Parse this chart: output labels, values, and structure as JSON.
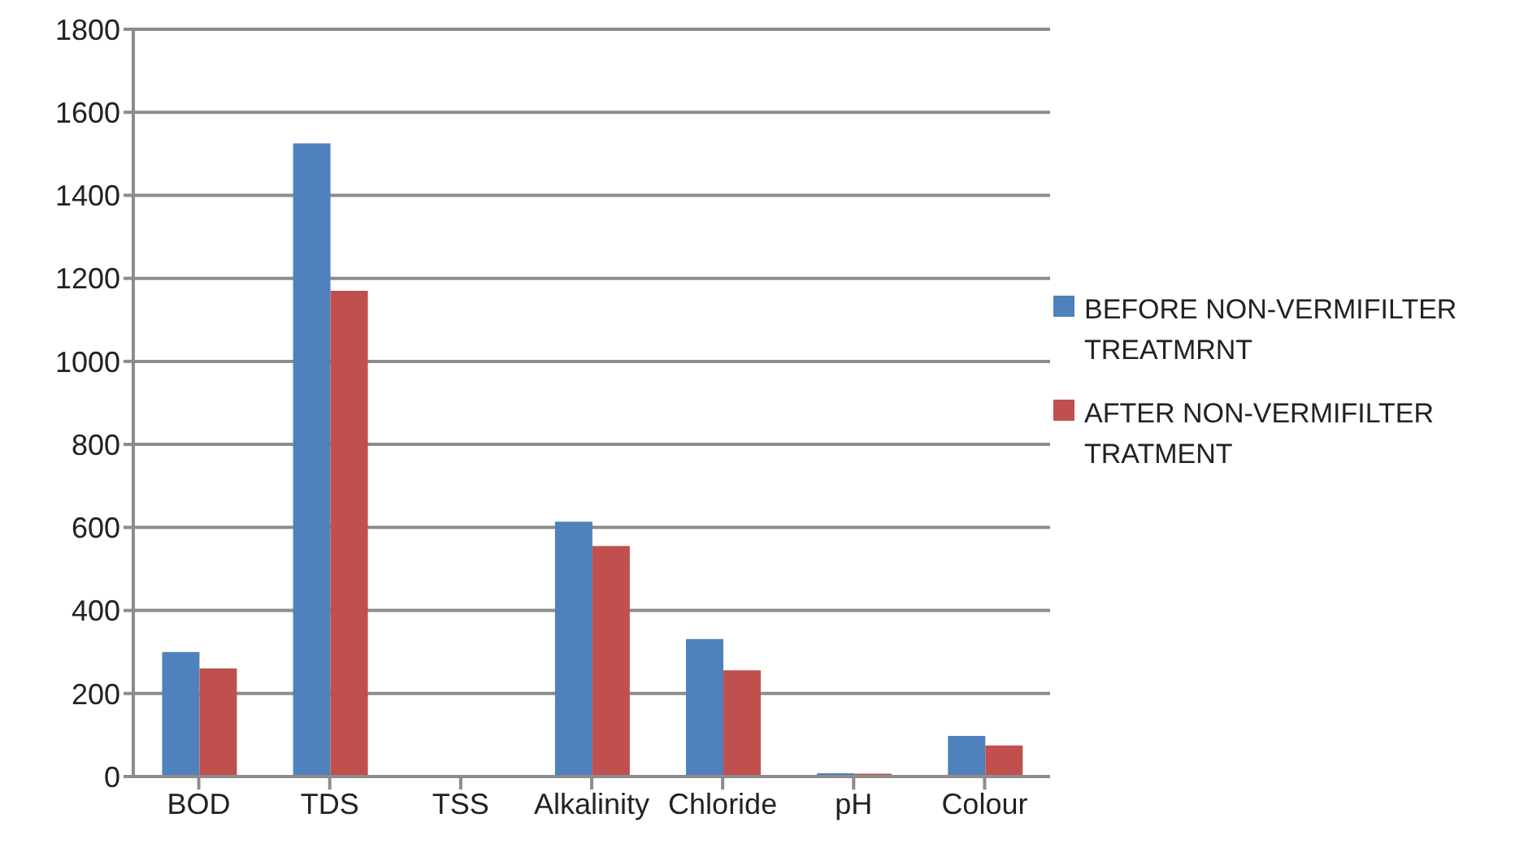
{
  "chart_data": {
    "type": "bar",
    "categories": [
      "BOD",
      "TDS",
      "TSS",
      "Alkalinity",
      "Chloride",
      "pH",
      "Colour"
    ],
    "series": [
      {
        "name": "BEFORE NON-VERMIFILTER TREATMRNT",
        "color": "#4f81bd",
        "values": [
          300,
          1525,
          0,
          614,
          331,
          8,
          98
        ]
      },
      {
        "name": "AFTER NON-VERMIFILTER TRATMENT",
        "color": "#c0504d",
        "values": [
          260,
          1170,
          0,
          555,
          256,
          7,
          75
        ]
      }
    ],
    "ylim": [
      0,
      1800
    ],
    "yticks": [
      0,
      200,
      400,
      600,
      800,
      1000,
      1200,
      1400,
      1600,
      1800
    ],
    "grid": "y",
    "legend": "right"
  }
}
